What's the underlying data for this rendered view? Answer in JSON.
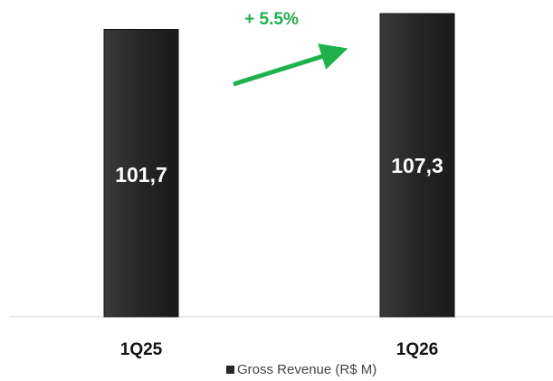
{
  "chart_data": {
    "type": "bar",
    "categories": [
      "1Q25",
      "1Q26"
    ],
    "series": [
      {
        "name": "Gross Revenue (R$ M)",
        "color": "#262626",
        "values": [
          101.7,
          107.3
        ],
        "value_labels": [
          "101,7",
          "107,3"
        ]
      }
    ],
    "annotation": "+ 5.5%"
  }
}
